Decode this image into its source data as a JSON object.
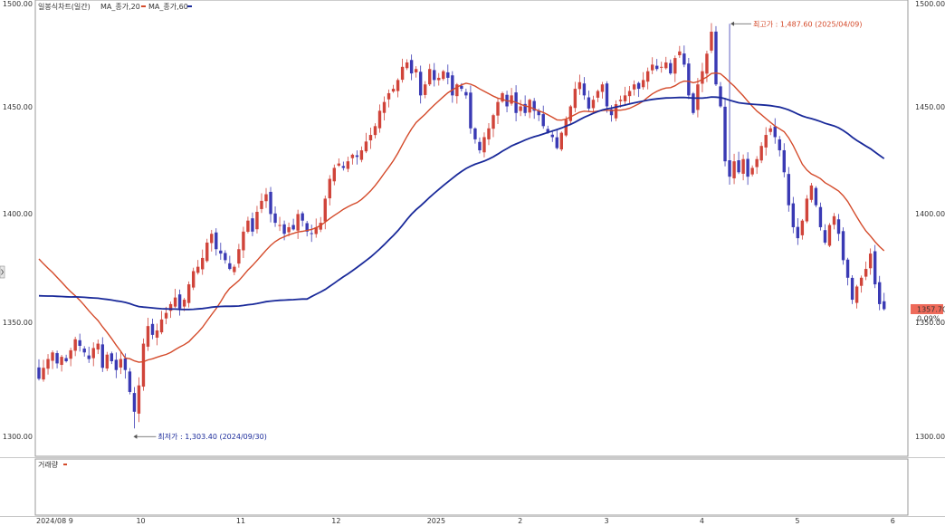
{
  "chart_data": {
    "type": "candlestick",
    "title": "일봉식차트(일간)",
    "legend": [
      {
        "label": "MA_종가,20",
        "color": "#d44a2a"
      },
      {
        "label": "MA_종가,60",
        "color": "#1a2a9a"
      }
    ],
    "volume_label": "거래량",
    "x_tick_labels": [
      {
        "label": "2024/08 9",
        "i": 0
      },
      {
        "label": "10",
        "i": 22
      },
      {
        "label": "11",
        "i": 44
      },
      {
        "label": "12",
        "i": 65
      },
      {
        "label": "2025",
        "i": 86
      },
      {
        "label": "2",
        "i": 106
      },
      {
        "label": "3",
        "i": 125
      },
      {
        "label": "4",
        "i": 146
      },
      {
        "label": "5",
        "i": 167
      },
      {
        "label": "6",
        "i": 188
      }
    ],
    "y_ticks": [
      "1500.00",
      "1450.00",
      "1400.00",
      "1350.00",
      "1300.00"
    ],
    "ylim": [
      1300,
      1500
    ],
    "current_price": "1357.70",
    "current_change": "0.09%",
    "annotations": {
      "high": {
        "label": "최고가",
        "value": "1,487.60",
        "date": "2025/04/09",
        "i": 152
      },
      "low": {
        "label": "최저가",
        "value": "1,303.40",
        "date": "2024/09/30",
        "i": 21
      }
    },
    "close": [
      1326,
      1331,
      1335,
      1338,
      1333,
      1336,
      1334,
      1339,
      1344,
      1341,
      1338,
      1335,
      1340,
      1342,
      1331,
      1337,
      1334,
      1330,
      1335,
      1330,
      1320,
      1311,
      1323,
      1342,
      1350,
      1346,
      1348,
      1353,
      1356,
      1360,
      1363,
      1358,
      1362,
      1369,
      1375,
      1377,
      1381,
      1388,
      1392,
      1385,
      1383,
      1380,
      1376,
      1377,
      1385,
      1393,
      1398,
      1393,
      1402,
      1407,
      1410,
      1401,
      1397,
      1396,
      1392,
      1395,
      1394,
      1401,
      1398,
      1393,
      1392,
      1395,
      1397,
      1408,
      1417,
      1422,
      1424,
      1422,
      1425,
      1428,
      1427,
      1430,
      1434,
      1437,
      1441,
      1448,
      1452,
      1456,
      1458,
      1462,
      1468,
      1470,
      1465,
      1467,
      1455,
      1460,
      1467,
      1462,
      1463,
      1466,
      1463,
      1455,
      1460,
      1458,
      1455,
      1440,
      1435,
      1430,
      1436,
      1440,
      1446,
      1452,
      1456,
      1450,
      1455,
      1447,
      1450,
      1447,
      1453,
      1448,
      1446,
      1441,
      1438,
      1436,
      1431,
      1438,
      1444,
      1450,
      1458,
      1461,
      1455,
      1449,
      1453,
      1457,
      1460,
      1450,
      1446,
      1451,
      1453,
      1455,
      1457,
      1460,
      1458,
      1462,
      1466,
      1469,
      1467,
      1468,
      1470,
      1465,
      1472,
      1475,
      1469,
      1455,
      1447,
      1460,
      1466,
      1474,
      1484,
      1460,
      1450,
      1425,
      1418,
      1425,
      1420,
      1426,
      1418,
      1422,
      1426,
      1432,
      1437,
      1440,
      1436,
      1430,
      1420,
      1405,
      1395,
      1390,
      1398,
      1408,
      1414,
      1405,
      1395,
      1388,
      1396,
      1400,
      1392,
      1380,
      1372,
      1362,
      1368,
      1372,
      1376,
      1383,
      1369,
      1360,
      1357.7
    ]
  }
}
